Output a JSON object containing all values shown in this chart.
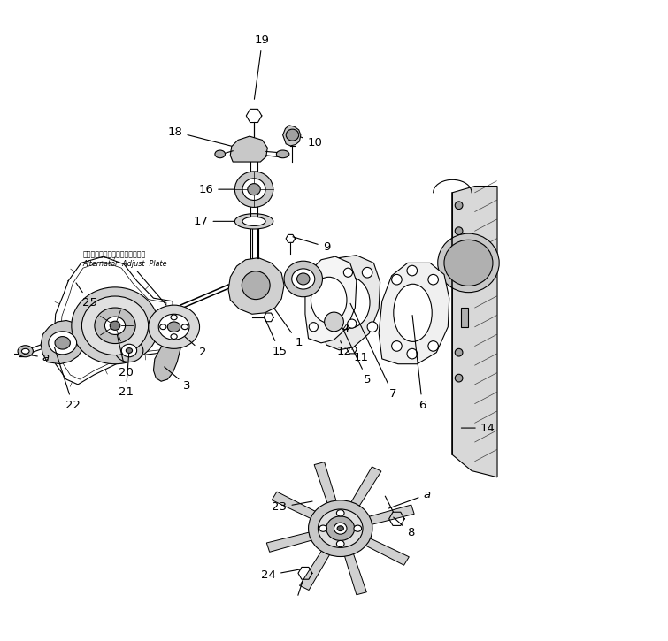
{
  "bg_color": "#ffffff",
  "line_color": "#000000",
  "fig_width": 7.55,
  "fig_height": 7.25,
  "dpi": 100,
  "fs_label": 9.5,
  "lw": 0.8,
  "alternator_label_jp": "オルタネータアジャストプレート",
  "alternator_label_en": "Alternator  Adjust  Plate"
}
